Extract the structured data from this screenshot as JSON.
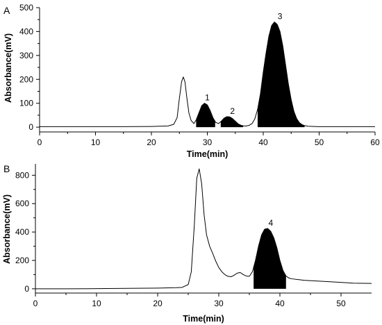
{
  "chart_data": [
    {
      "type": "line",
      "panel_label": "A",
      "xlabel": "Time(min)",
      "ylabel": "Absorbance(mV)",
      "xlim": [
        0,
        60
      ],
      "ylim": [
        -20,
        500
      ],
      "xticks": [
        0,
        10,
        20,
        30,
        40,
        50,
        60
      ],
      "yticks": [
        0,
        100,
        200,
        300,
        400,
        500
      ],
      "grid": false,
      "series": [
        {
          "x": [
            0,
            5,
            10,
            15,
            20,
            23,
            24,
            24.6,
            25,
            25.4,
            25.7,
            26,
            26.3,
            26.7,
            27.1,
            27.6,
            28,
            28.5,
            29,
            29.5,
            30,
            30.5,
            31,
            31.5,
            32,
            32.5,
            33,
            33.5,
            34,
            34.5,
            35,
            35.5,
            36,
            36.5,
            37,
            37.5,
            38,
            38.5,
            39,
            39.5,
            40,
            40.5,
            41,
            41.5,
            42,
            42.5,
            43,
            43.5,
            44,
            44.5,
            45,
            45.5,
            46,
            46.5,
            47,
            47.5,
            48,
            49,
            50,
            52,
            55,
            58,
            60
          ],
          "y": [
            2,
            2,
            2,
            2,
            3,
            5,
            12,
            40,
            120,
            190,
            210,
            190,
            130,
            60,
            28,
            15,
            30,
            60,
            90,
            100,
            93,
            70,
            40,
            20,
            15,
            25,
            38,
            44,
            43,
            36,
            25,
            14,
            8,
            5,
            5,
            8,
            15,
            35,
            75,
            140,
            230,
            310,
            380,
            425,
            440,
            430,
            400,
            340,
            260,
            180,
            115,
            65,
            35,
            18,
            10,
            6,
            4,
            3,
            2,
            2,
            2,
            2,
            2
          ]
        }
      ],
      "peaks": [
        {
          "label": "1",
          "x": 30,
          "y": 100,
          "range": [
            28,
            31.4
          ]
        },
        {
          "label": "2",
          "x": 34.5,
          "y": 44,
          "range": [
            32.4,
            36.4
          ]
        },
        {
          "label": "3",
          "x": 43,
          "y": 440,
          "range": [
            39,
            47.4
          ]
        }
      ]
    },
    {
      "type": "line",
      "panel_label": "B",
      "xlabel": "Time(min)",
      "ylabel": "Absorbance(mV)",
      "xlim": [
        0,
        55
      ],
      "ylim": [
        -30,
        880
      ],
      "xticks": [
        0,
        10,
        20,
        30,
        40,
        50
      ],
      "yticks": [
        0,
        200,
        400,
        600,
        800
      ],
      "grid": false,
      "series": [
        {
          "x": [
            0,
            5,
            10,
            15,
            20,
            23,
            24,
            25,
            25.5,
            26,
            26.4,
            26.8,
            27.2,
            27.6,
            28,
            28.5,
            29,
            29.5,
            30,
            30.5,
            31,
            31.5,
            32,
            32.5,
            33,
            33.5,
            34,
            34.5,
            35,
            35.5,
            36,
            36.5,
            37,
            37.5,
            38,
            38.5,
            39,
            39.5,
            40,
            40.5,
            41,
            41.5,
            42,
            43,
            44,
            46,
            48,
            50,
            52,
            55
          ],
          "y": [
            0,
            0,
            1,
            3,
            5,
            8,
            10,
            30,
            120,
            450,
            780,
            845,
            740,
            520,
            380,
            300,
            250,
            195,
            150,
            120,
            100,
            88,
            85,
            95,
            110,
            115,
            100,
            90,
            88,
            120,
            200,
            300,
            380,
            420,
            425,
            405,
            360,
            290,
            200,
            130,
            90,
            75,
            70,
            65,
            60,
            55,
            50,
            45,
            40,
            38
          ]
        }
      ],
      "peaks": [
        {
          "label": "4",
          "x": 38.5,
          "y": 425,
          "range": [
            35.7,
            41
          ]
        }
      ]
    }
  ]
}
